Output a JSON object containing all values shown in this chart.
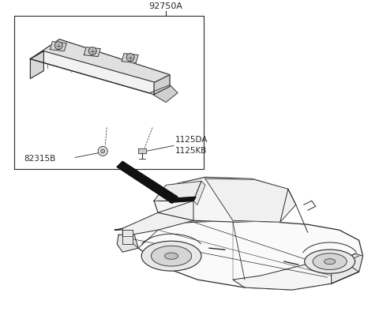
{
  "bg_color": "#ffffff",
  "lc": "#2a2a2a",
  "label_92750A": "92750A",
  "label_82315B": "82315B",
  "label_1125DA": "1125DA",
  "label_1125KB": "1125KB",
  "fs": 7.5,
  "fig_w": 4.8,
  "fig_h": 4.09,
  "dpi": 100
}
